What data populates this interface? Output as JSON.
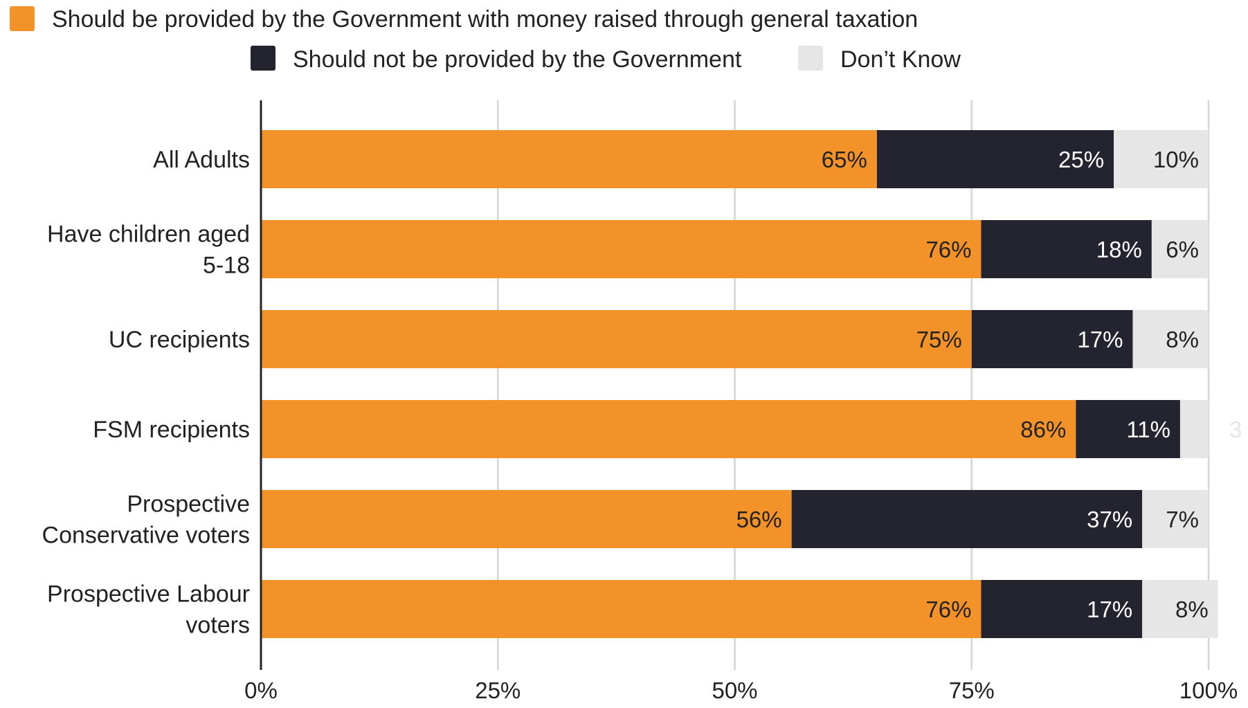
{
  "chart_data": {
    "type": "bar",
    "orientation": "horizontal",
    "stacked": true,
    "title": "",
    "xlabel": "",
    "ylabel": "",
    "xlim": [
      0,
      100
    ],
    "grid": true,
    "legend_position": "top",
    "x_ticks": [
      "0%",
      "25%",
      "50%",
      "75%",
      "100%"
    ],
    "x_tick_values": [
      0,
      25,
      50,
      75,
      100
    ],
    "categories": [
      "All Adults",
      "Have children aged 5-18",
      "UC recipients",
      "FSM recipients",
      "Prospective Conservative voters",
      "Prospective Labour voters"
    ],
    "series": [
      {
        "name": "Should be provided by the Government with money raised through general taxation",
        "color": "#f39229",
        "label_color": "#222222",
        "values": [
          65,
          76,
          75,
          86,
          56,
          76
        ],
        "labels": [
          "65%",
          "76%",
          "75%",
          "86%",
          "56%",
          "76%"
        ]
      },
      {
        "name": "Should not be provided by the Government",
        "color": "#23242f",
        "label_color": "#ffffff",
        "values": [
          25,
          18,
          17,
          11,
          37,
          17
        ],
        "labels": [
          "25%",
          "18%",
          "17%",
          "11%",
          "37%",
          "17%"
        ]
      },
      {
        "name": "Don’t Know",
        "color": "#e6e6e6",
        "label_color": "#222222",
        "values": [
          10,
          6,
          8,
          3,
          7,
          8
        ],
        "labels": [
          "10%",
          "6%",
          "8%",
          "3",
          "7%",
          "8%"
        ]
      }
    ]
  }
}
